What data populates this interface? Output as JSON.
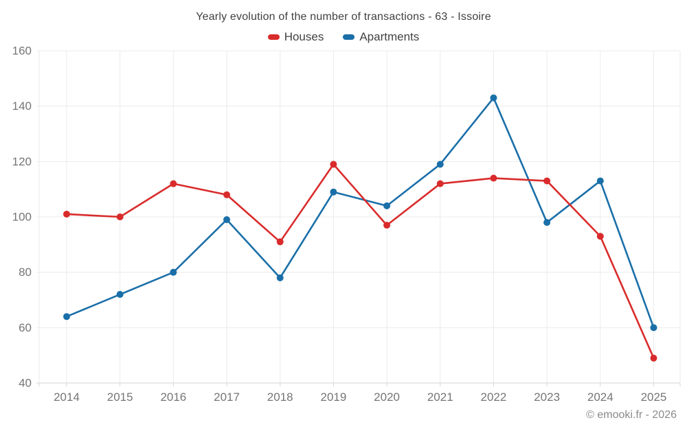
{
  "chart_data": {
    "type": "line",
    "title": "Yearly evolution of the number of transactions - 63 - Issoire",
    "categories": [
      "2014",
      "2015",
      "2016",
      "2017",
      "2018",
      "2019",
      "2020",
      "2021",
      "2022",
      "2023",
      "2024",
      "2025"
    ],
    "series": [
      {
        "name": "Houses",
        "color": "#d92b2b",
        "values": [
          101,
          100,
          112,
          108,
          91,
          119,
          97,
          112,
          114,
          113,
          93,
          49
        ]
      },
      {
        "name": "Apartments",
        "color": "#1a6fa8",
        "values": [
          64,
          72,
          80,
          99,
          78,
          109,
          104,
          119,
          143,
          98,
          113,
          60
        ]
      }
    ],
    "xlabel": "",
    "ylabel": "",
    "ylim": [
      40,
      160
    ],
    "yticks": [
      160,
      140,
      120,
      100,
      80,
      60,
      40
    ],
    "grid": true,
    "legend_position": "top",
    "marker": "circle"
  },
  "footer": {
    "copyright": "© emooki.fr - 2026"
  },
  "colors": {
    "background": "#ffffff",
    "grid": "#ebebeb",
    "axis": "#d6d6d6",
    "tick_label": "#757575",
    "title_text": "#3f3f3f",
    "legend_text": "#424242",
    "copyright_text": "#8a8a8a",
    "houses": "#d92b2b",
    "apartments": "#1a6fa8"
  }
}
